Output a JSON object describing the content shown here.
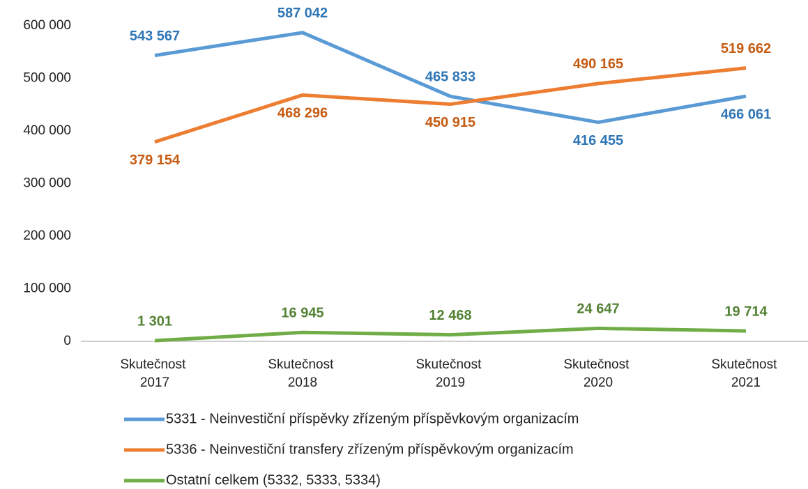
{
  "chart_data": {
    "type": "line",
    "categories": [
      "Skutečnost 2017",
      "Skutečnost 2018",
      "Skutečnost 2019",
      "Skutečnost 2020",
      "Skutečnost 2021"
    ],
    "series": [
      {
        "name": "5331 - Neinvestiční příspěvky zřízeným příspěvkovým organizacím",
        "color": "#5b9bd5",
        "values": [
          543567,
          587042,
          465833,
          416455,
          466061
        ],
        "value_labels": [
          "543 567",
          "587 042",
          "465 833",
          "416 455",
          "466 061"
        ]
      },
      {
        "name": "5336 - Neinvestiční transfery zřízeným příspěvkovým organizacím",
        "color": "#ed7d31",
        "values": [
          379154,
          468296,
          450915,
          490165,
          519662
        ],
        "value_labels": [
          "379 154",
          "468 296",
          "450 915",
          "490 165",
          "519 662"
        ]
      },
      {
        "name": "Ostatní celkem (5332, 5333, 5334)",
        "color": "#70ad47",
        "values": [
          1301,
          16945,
          12468,
          24647,
          19714
        ],
        "value_labels": [
          "1 301",
          "16 945",
          "12 468",
          "24 647",
          "19 714"
        ]
      }
    ],
    "ylim": [
      0,
      600000
    ],
    "yticks": [
      {
        "value": 0,
        "label": "0"
      },
      {
        "value": 100000,
        "label": "100 000"
      },
      {
        "value": 200000,
        "label": "200 000"
      },
      {
        "value": 300000,
        "label": "300 000"
      },
      {
        "value": 400000,
        "label": "400 000"
      },
      {
        "value": 500000,
        "label": "500 000"
      },
      {
        "value": 600000,
        "label": "600 000"
      }
    ],
    "grid": false,
    "legend": "bottom"
  }
}
